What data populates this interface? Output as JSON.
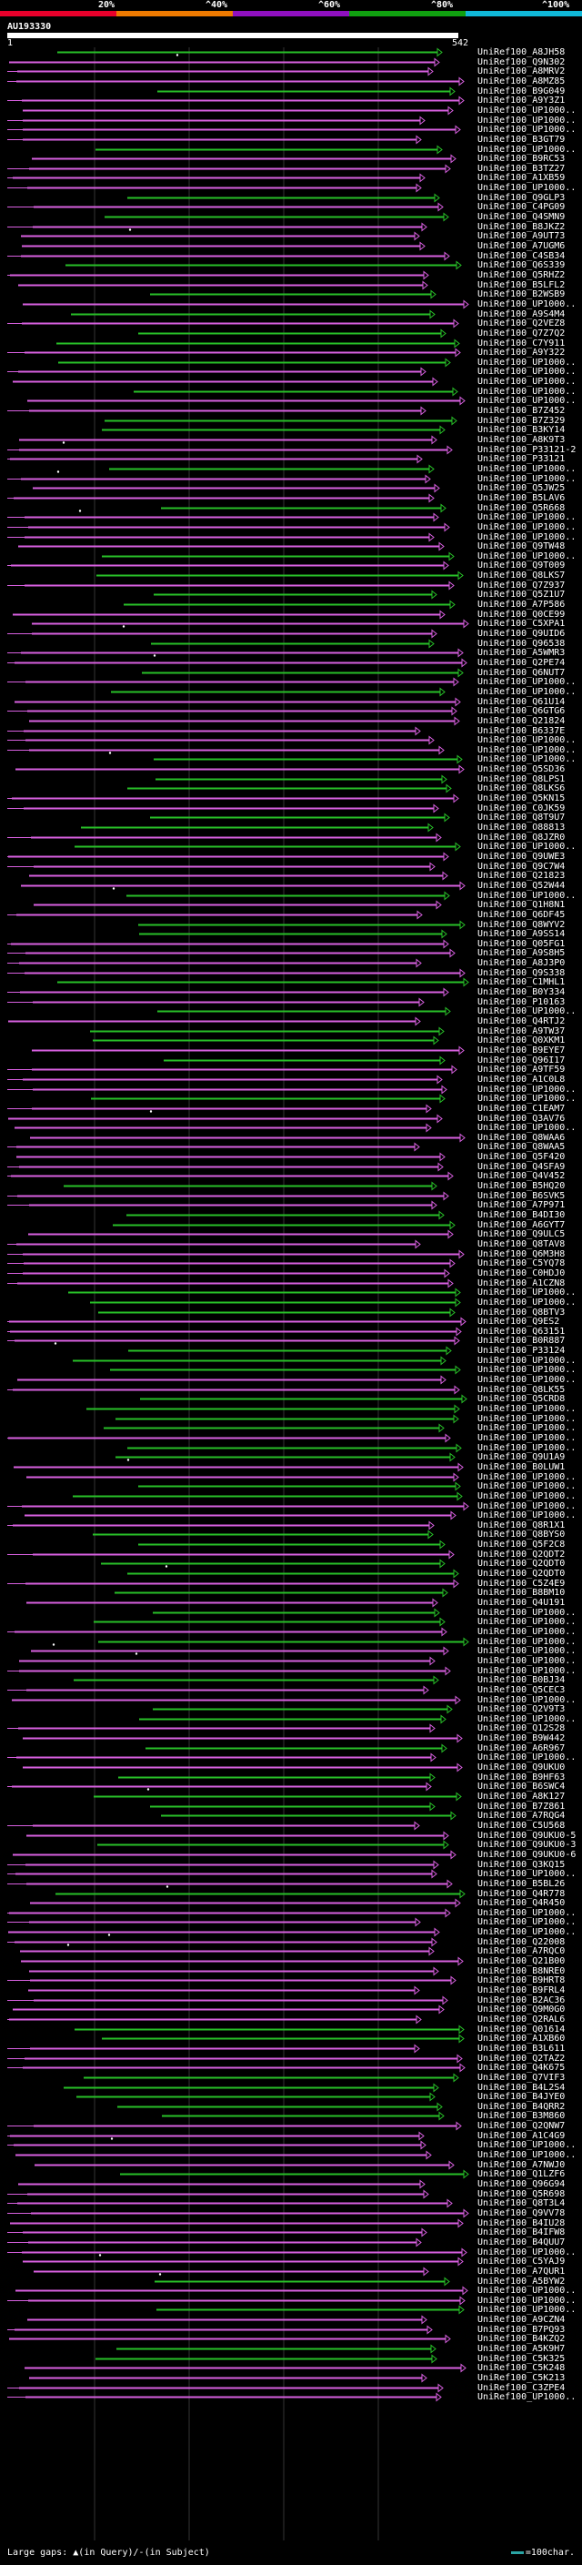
{
  "colors": {
    "red": "#e8002b",
    "orange": "#ee7a00",
    "purple": "#9010c0",
    "green": "#10a010",
    "cyan": "#10b8d8",
    "hit_pink": "#d860e0",
    "hit_green": "#28c028",
    "query": "#ffffff"
  },
  "scale": {
    "labels": [
      "20%",
      "^40%",
      "^60%",
      "^80%",
      "^100%"
    ]
  },
  "query": {
    "id": "AU193330",
    "start": "1",
    "end": "542"
  },
  "legend": {
    "prefix": "Large gaps:",
    "in_query": "(in Query)/",
    "in_subject": "(in Subject)",
    "scale_text": "=100char."
  },
  "hits": [
    "UniRef100_A8JH58",
    "UniRef100_Q9N302",
    "UniRef100_A8MRV2",
    "UniRef100_A8MZ85",
    "UniRef100_B9G049",
    "UniRef100_A9Y3Z1",
    "UniRef100_UP1000..",
    "UniRef100_UP1000..",
    "UniRef100_UP1000..",
    "UniRef100_B3GT79",
    "UniRef100_UP1000..",
    "UniRef100_B9RC53",
    "UniRef100_B3TZ27",
    "UniRef100_A1XB59",
    "UniRef100_UP1000..",
    "UniRef100_Q9GLP3",
    "UniRef100_C4PG09",
    "UniRef100_Q4SMN9",
    "UniRef100_B8JKZ2",
    "UniRef100_A9UT73",
    "UniRef100_A7UGM6",
    "UniRef100_C4SB34",
    "UniRef100_Q6S339",
    "UniRef100_Q5RHZ2",
    "UniRef100_B5LFL2",
    "UniRef100_B2WSB9",
    "UniRef100_UP1000..",
    "UniRef100_A9S4M4",
    "UniRef100_Q2VEZ8",
    "UniRef100_Q7Z7Q2",
    "UniRef100_C7Y911",
    "UniRef100_A9Y322",
    "UniRef100_UP1000..",
    "UniRef100_UP1000..",
    "UniRef100_UP1000..",
    "UniRef100_UP1000..",
    "UniRef100_UP1000..",
    "UniRef100_B7Z452",
    "UniRef100_B7Z329",
    "UniRef100_B3KY14",
    "UniRef100_A8K9T3",
    "UniRef100_P33121-2",
    "UniRef100_P33121",
    "UniRef100_UP1000..",
    "UniRef100_UP1000..",
    "UniRef100_Q5JW25",
    "UniRef100_B5LAV6",
    "UniRef100_Q5R668",
    "UniRef100_UP1000..",
    "UniRef100_UP1000..",
    "UniRef100_UP1000..",
    "UniRef100_Q9TW48",
    "UniRef100_UP1000..",
    "UniRef100_Q9T009",
    "UniRef100_Q8LKS7",
    "UniRef100_Q7Z937",
    "UniRef100_Q5Z1U7",
    "UniRef100_A7P586",
    "UniRef100_Q0CE99",
    "UniRef100_C5XPA1",
    "UniRef100_Q9UID6",
    "UniRef100_Q96538",
    "UniRef100_A5WMR3",
    "UniRef100_Q2PE74",
    "UniRef100_Q6NUT7",
    "UniRef100_UP1000..",
    "UniRef100_UP1000..",
    "UniRef100_Q61U14",
    "UniRef100_Q6GTG6",
    "UniRef100_Q21824",
    "UniRef100_B6337E",
    "UniRef100_UP1000..",
    "UniRef100_UP1000..",
    "UniRef100_UP1000..",
    "UniRef100_Q5SD36",
    "UniRef100_Q8LPS1",
    "UniRef100_Q8LKS6",
    "UniRef100_Q5KN15",
    "UniRef100_C0JK59",
    "UniRef100_Q8T9U7",
    "UniRef100_O88813",
    "UniRef100_Q8JZR0",
    "UniRef100_UP1000..",
    "UniRef100_Q9UWE3",
    "UniRef100_Q9C7W4",
    "UniRef100_Q21823",
    "UniRef100_Q52W44",
    "UniRef100_UP1000..",
    "UniRef100_Q1H8N1",
    "UniRef100_Q6DF45",
    "UniRef100_Q8WYV2",
    "UniRef100_A9SS14",
    "UniRef100_Q05FG1",
    "UniRef100_A9S8H5",
    "UniRef100_A8J3P0",
    "UniRef100_Q9S338",
    "UniRef100_C1MHL1",
    "UniRef100_B0Y334",
    "UniRef100_P10163",
    "UniRef100_UP1000..",
    "UniRef100_Q4RTJ2",
    "UniRef100_A9TW37",
    "UniRef100_Q0XKM1",
    "UniRef100_B9EYE7",
    "UniRef100_Q96I17",
    "UniRef100_A9TF59",
    "UniRef100_A1C0L8",
    "UniRef100_UP1000..",
    "UniRef100_UP1000..",
    "UniRef100_C1EAM7",
    "UniRef100_Q3AV76",
    "UniRef100_UP1000..",
    "UniRef100_Q8WAA6",
    "UniRef100_Q8WAA5",
    "UniRef100_Q5F420",
    "UniRef100_Q4SFA9",
    "UniRef100_Q4V452",
    "UniRef100_B5HQ20",
    "UniRef100_B6SVK5",
    "UniRef100_A7P971",
    "UniRef100_B4DI30",
    "UniRef100_A6GYT7",
    "UniRef100_Q9ULC5",
    "UniRef100_Q8TAV8",
    "UniRef100_Q6M3H8",
    "UniRef100_C5YQ78",
    "UniRef100_C0HDJ0",
    "UniRef100_A1CZN8",
    "UniRef100_UP1000..",
    "UniRef100_UP1000..",
    "UniRef100_Q8BTV3",
    "UniRef100_Q9ES2",
    "UniRef100_Q63151",
    "UniRef100_B0R887",
    "UniRef100_P33124",
    "UniRef100_UP1000..",
    "UniRef100_UP1000..",
    "UniRef100_UP1000..",
    "UniRef100_Q8LK55",
    "UniRef100_Q5CRD8",
    "UniRef100_UP1000..",
    "UniRef100_UP1000..",
    "UniRef100_UP1000..",
    "UniRef100_UP1000..",
    "UniRef100_UP1000..",
    "UniRef100_Q9U1A9",
    "UniRef100_B0LUW1",
    "UniRef100_UP1000..",
    "UniRef100_UP1000..",
    "UniRef100_UP1000..",
    "UniRef100_UP1000..",
    "UniRef100_UP1000..",
    "UniRef100_Q8R1X1",
    "UniRef100_Q8BYS0",
    "UniRef100_Q5F2C8",
    "UniRef100_Q2QDT2",
    "UniRef100_Q2QDT0",
    "UniRef100_Q2QDT0",
    "UniRef100_C5Z4E9",
    "UniRef100_B8BM10",
    "UniRef100_Q4U191",
    "UniRef100_UP1000..",
    "UniRef100_UP1000..",
    "UniRef100_UP1000..",
    "UniRef100_UP1000..",
    "UniRef100_UP1000..",
    "UniRef100_UP1000..",
    "UniRef100_UP1000..",
    "UniRef100_B0BJ34",
    "UniRef100_Q5CEC3",
    "UniRef100_UP1000..",
    "UniRef100_Q2V9T3",
    "UniRef100_UP1000..",
    "UniRef100_Q12S28",
    "UniRef100_B9W442",
    "UniRef100_A6R967",
    "UniRef100_UP1000..",
    "UniRef100_Q9UKU0",
    "UniRef100_B9HF63",
    "UniRef100_B6SWC4",
    "UniRef100_A8K127",
    "UniRef100_B7Z861",
    "UniRef100_A7RQG4",
    "UniRef100_C5U568",
    "UniRef100_Q9UKU0-5",
    "UniRef100_Q9UKU0-3",
    "UniRef100_Q9UKU0-6",
    "UniRef100_Q3KQ15",
    "UniRef100_UP1000..",
    "UniRef100_B5BL26",
    "UniRef100_Q4R778",
    "UniRef100_Q4R450",
    "UniRef100_UP1000..",
    "UniRef100_UP1000..",
    "UniRef100_UP1000..",
    "UniRef100_Q22008",
    "UniRef100_A7RQC0",
    "UniRef100_Q21B00",
    "UniRef100_B8NRE0",
    "UniRef100_B9HRT8",
    "UniRef100_B9FRL4",
    "UniRef100_B2AC36",
    "UniRef100_Q9M0G0",
    "UniRef100_Q2RAL6",
    "UniRef100_Q01614",
    "UniRef100_A1XB60",
    "UniRef100_B3L611",
    "UniRef100_Q2TAZ2",
    "UniRef100_Q4K675",
    "UniRef100_Q7VIF3",
    "UniRef100_B4L2S4",
    "UniRef100_B4JYE0",
    "UniRef100_B4QRR2",
    "UniRef100_B3M860",
    "UniRef100_Q2QNW7",
    "UniRef100_A1C4G9",
    "UniRef100_UP1000..",
    "UniRef100_UP1000..",
    "UniRef100_A7NWJ0",
    "UniRef100_Q1LZF6",
    "UniRef100_Q96G94",
    "UniRef100_Q5R698",
    "UniRef100_Q8T3L4",
    "UniRef100_Q9VV78",
    "UniRef100_B4IU28",
    "UniRef100_B4IFW8",
    "UniRef100_B4QUU7",
    "UniRef100_UP1000..",
    "UniRef100_C5YAJ9",
    "UniRef100_A7QUR1",
    "UniRef100_A5BYW2",
    "UniRef100_UP1000..",
    "UniRef100_UP1000..",
    "UniRef100_UP1000..",
    "UniRef100_A9CZN4",
    "UniRef100_B7PQ93",
    "UniRef100_B4KZQ2",
    "UniRef100_A5K9H7",
    "UniRef100_C5K325",
    "UniRef100_C5K248",
    "UniRef100_C5K213",
    "UniRef100_C3ZPE4",
    "UniRef100_UP1000.."
  ]
}
